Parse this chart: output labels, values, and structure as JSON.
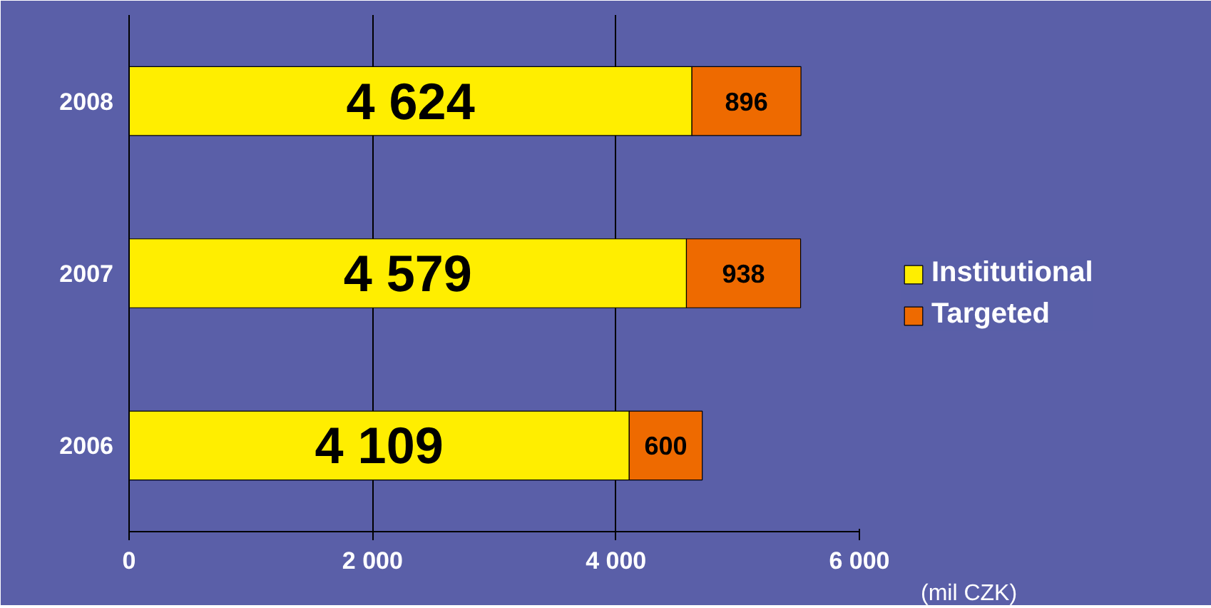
{
  "chart_data": {
    "type": "bar",
    "orientation": "horizontal",
    "stacked": true,
    "categories": [
      "2008",
      "2007",
      "2006"
    ],
    "series": [
      {
        "name": "Institutional",
        "color": "#ffee00",
        "values": [
          4624,
          4579,
          4109
        ],
        "value_labels": [
          "4 624",
          "4 579",
          "4 109"
        ]
      },
      {
        "name": "Targeted",
        "color": "#ee6a00",
        "values": [
          896,
          938,
          600
        ],
        "value_labels": [
          "896",
          "938",
          "600"
        ]
      }
    ],
    "xlim": [
      0,
      6000
    ],
    "xticks": [
      0,
      {
        "value": 2000,
        "label": "2 000"
      },
      {
        "value": 4000,
        "label": "4 000"
      },
      {
        "value": 6000,
        "label": "6 000"
      }
    ],
    "xlabel": "(mil CZK)",
    "grid": "x",
    "legend": "right"
  }
}
